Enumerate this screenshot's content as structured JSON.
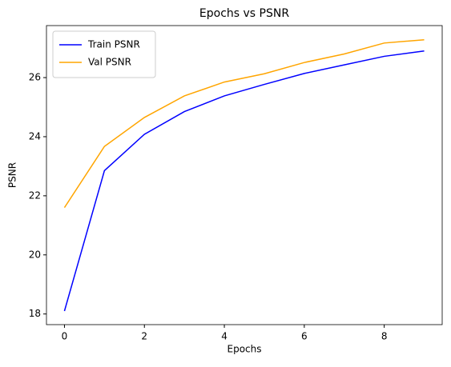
{
  "chart_data": {
    "type": "line",
    "title": "Epochs vs PSNR",
    "xlabel": "Epochs",
    "ylabel": "PSNR",
    "x": [
      0,
      1,
      2,
      3,
      4,
      5,
      6,
      7,
      8,
      9
    ],
    "series": [
      {
        "name": "Train PSNR",
        "color": "blue",
        "values": [
          18.1,
          22.85,
          24.08,
          24.85,
          25.38,
          25.77,
          26.14,
          26.43,
          26.72,
          26.9
        ]
      },
      {
        "name": "Val PSNR",
        "color": "orange",
        "values": [
          21.6,
          23.67,
          24.65,
          25.38,
          25.85,
          26.13,
          26.51,
          26.8,
          27.17,
          27.28
        ]
      }
    ],
    "xlim": [
      -0.45,
      9.45
    ],
    "xticks": [
      0,
      2,
      4,
      6,
      8
    ],
    "ylim": [
      17.64,
      27.76
    ],
    "yticks": [
      18,
      20,
      22,
      24,
      26
    ],
    "legend": "upper left",
    "grid": false
  }
}
